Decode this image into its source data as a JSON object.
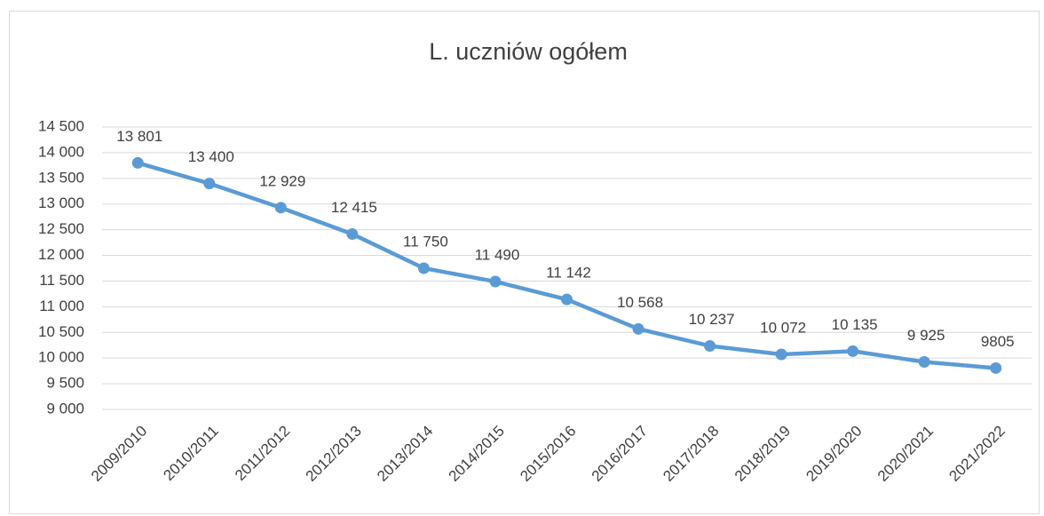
{
  "chart_data": {
    "type": "line",
    "title": "L. uczniów ogółem",
    "categories": [
      "2009/2010",
      "2010/2011",
      "2011/2012",
      "2012/2013",
      "2013/2014",
      "2014/2015",
      "2015/2016",
      "2016/2017",
      "2017/2018",
      "2018/2019",
      "2019/2020",
      "2020/2021",
      "2021/2022"
    ],
    "values": [
      13801,
      13400,
      12929,
      12415,
      11750,
      11490,
      11142,
      10568,
      10237,
      10072,
      10135,
      9925,
      9805
    ],
    "value_labels": [
      "13 801",
      "13 400",
      "12 929",
      "12 415",
      "11 750",
      "11 490",
      "11 142",
      "10 568",
      "10 237",
      "10 072",
      "10 135",
      "9 925",
      "9805"
    ],
    "color": "#5b9bd5",
    "ylim": [
      9000,
      14500
    ],
    "yticks": [
      {
        "value": 9000,
        "label": "9 000"
      },
      {
        "value": 9500,
        "label": "9 500"
      },
      {
        "value": 10000,
        "label": "10 000"
      },
      {
        "value": 10500,
        "label": "10 500"
      },
      {
        "value": 11000,
        "label": "11 000"
      },
      {
        "value": 11500,
        "label": "11 500"
      },
      {
        "value": 12000,
        "label": "12 000"
      },
      {
        "value": 12500,
        "label": "12 500"
      },
      {
        "value": 13000,
        "label": "13 000"
      },
      {
        "value": 13500,
        "label": "13 500"
      },
      {
        "value": 14000,
        "label": "14 000"
      },
      {
        "value": 14500,
        "label": "14 500"
      }
    ],
    "grid": true
  }
}
